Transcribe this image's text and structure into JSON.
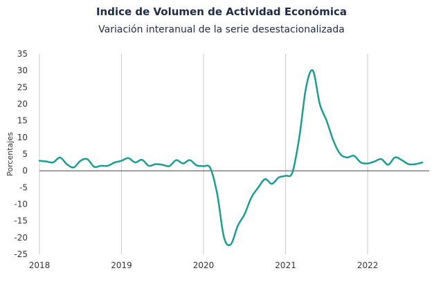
{
  "chart_data": {
    "type": "line",
    "title": "Indice de Volumen de  Actividad Económica",
    "subtitle": "Variación interanual de la serie desestacionalizada",
    "xlabel": "",
    "ylabel": "Porcentajes",
    "xlim": [
      2018,
      2022.75
    ],
    "ylim": [
      -25,
      35
    ],
    "yticks": [
      35,
      30,
      25,
      20,
      15,
      10,
      5,
      0,
      -5,
      -10,
      -15,
      -20,
      -25
    ],
    "xticks": [
      "2018",
      "2019",
      "2020",
      "2021",
      "2022"
    ],
    "grid": "vertical",
    "colors": {
      "line": "#1a9b93",
      "zero_line": "#555555",
      "grid": "#c8c8c8",
      "negative_tick": "#e02020",
      "positive_tick": "#333333"
    },
    "series": [
      {
        "x": [
          2018.0,
          2018.083,
          2018.167,
          2018.25,
          2018.333,
          2018.417,
          2018.5,
          2018.583,
          2018.667,
          2018.75,
          2018.833,
          2018.917,
          2019.0,
          2019.083,
          2019.167,
          2019.25,
          2019.333,
          2019.417,
          2019.5,
          2019.583,
          2019.667,
          2019.75,
          2019.833,
          2019.917,
          2020.0,
          2020.083,
          2020.167,
          2020.25,
          2020.333,
          2020.417,
          2020.5,
          2020.583,
          2020.667,
          2020.75,
          2020.833,
          2020.917,
          2021.0,
          2021.083,
          2021.167,
          2021.25,
          2021.333,
          2021.417,
          2021.5,
          2021.583,
          2021.667,
          2021.75,
          2021.833,
          2021.917,
          2022.0,
          2022.083,
          2022.167,
          2022.25,
          2022.333,
          2022.417,
          2022.5,
          2022.583,
          2022.667
        ],
        "values": [
          3.0,
          2.8,
          2.5,
          4.0,
          2.0,
          1.0,
          3.0,
          3.5,
          1.2,
          1.5,
          1.5,
          2.5,
          3.0,
          3.8,
          2.5,
          3.3,
          1.5,
          2.0,
          1.8,
          1.4,
          3.2,
          2.2,
          3.2,
          1.6,
          1.4,
          0.8,
          -7.0,
          -20.0,
          -22.0,
          -16.5,
          -13.0,
          -8.0,
          -5.0,
          -2.5,
          -3.9,
          -2.0,
          -1.5,
          -0.5,
          10.0,
          25.0,
          30.0,
          20.0,
          15.0,
          9.0,
          5.0,
          4.0,
          4.5,
          2.5,
          2.2,
          2.8,
          3.5,
          1.8,
          4.0,
          3.2,
          2.0,
          2.0,
          2.5
        ]
      }
    ]
  }
}
